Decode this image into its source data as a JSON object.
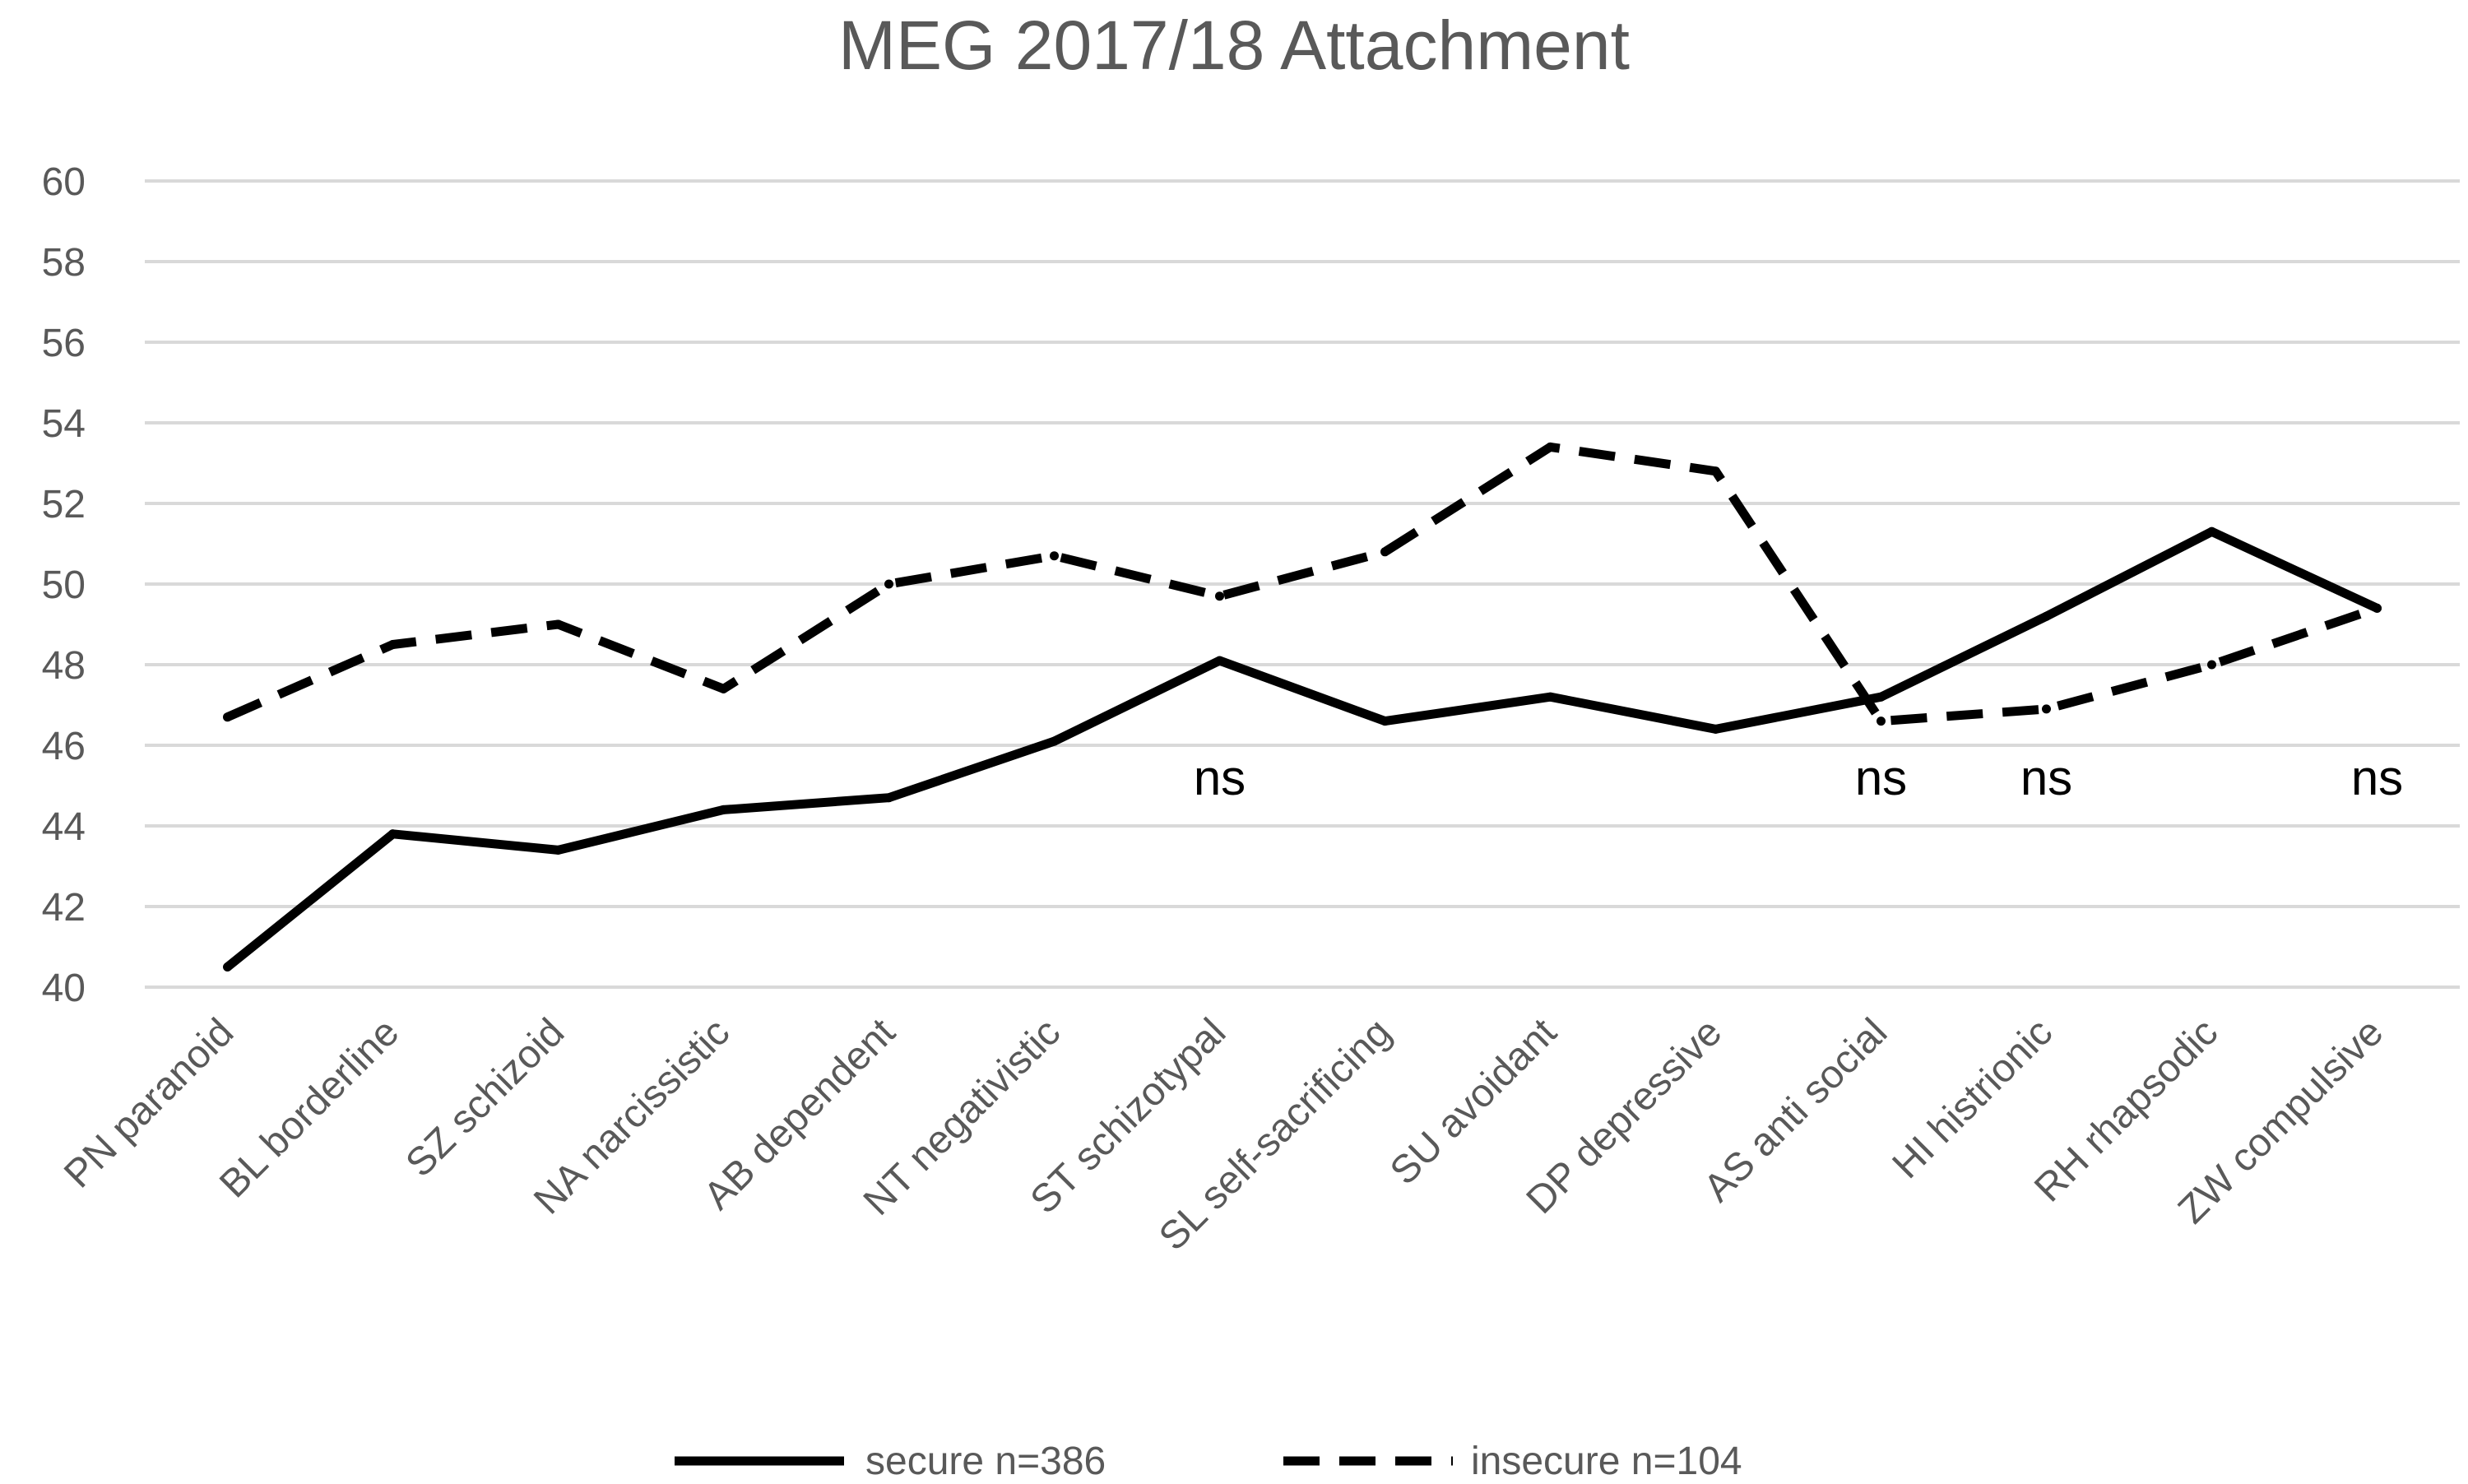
{
  "chart_data": {
    "type": "line",
    "title": "MEG 2017/18 Attachment",
    "categories": [
      "PN paranoid",
      "BL borderline",
      "SZ schizoid",
      "NA narcissistic",
      "AB dependent",
      "NT negativistic",
      "ST schizotypal",
      "SL self-sacrificing",
      "SU avoidant",
      "DP depressive",
      "AS anti social",
      "HI histrionic",
      "RH rhapsodic",
      "ZW compulsive"
    ],
    "series": [
      {
        "name": "secure n=386",
        "line_style": "solid",
        "color": "#000000",
        "values": [
          40.5,
          43.8,
          43.4,
          44.4,
          44.7,
          46.1,
          48.1,
          46.6,
          47.2,
          46.4,
          47.2,
          49.2,
          51.3,
          49.4
        ]
      },
      {
        "name": "insecure n=104",
        "line_style": "dashed",
        "color": "#000000",
        "values": [
          46.7,
          48.5,
          49.0,
          47.4,
          50.0,
          50.7,
          49.7,
          50.8,
          53.4,
          52.8,
          46.6,
          46.9,
          48.0,
          49.4
        ]
      }
    ],
    "xlabel": "",
    "ylabel": "",
    "ylim": [
      40,
      60
    ],
    "yticks": [
      "40",
      "42",
      "44",
      "46",
      "48",
      "50",
      "52",
      "54",
      "56",
      "58",
      "60"
    ],
    "grid": true,
    "legend_position": "bottom",
    "annotations": [
      {
        "category": "ST schizotypal",
        "text": "ns"
      },
      {
        "category": "AS anti social",
        "text": "ns"
      },
      {
        "category": "HI histrionic",
        "text": "ns"
      },
      {
        "category": "ZW compulsive",
        "text": "ns"
      }
    ]
  }
}
